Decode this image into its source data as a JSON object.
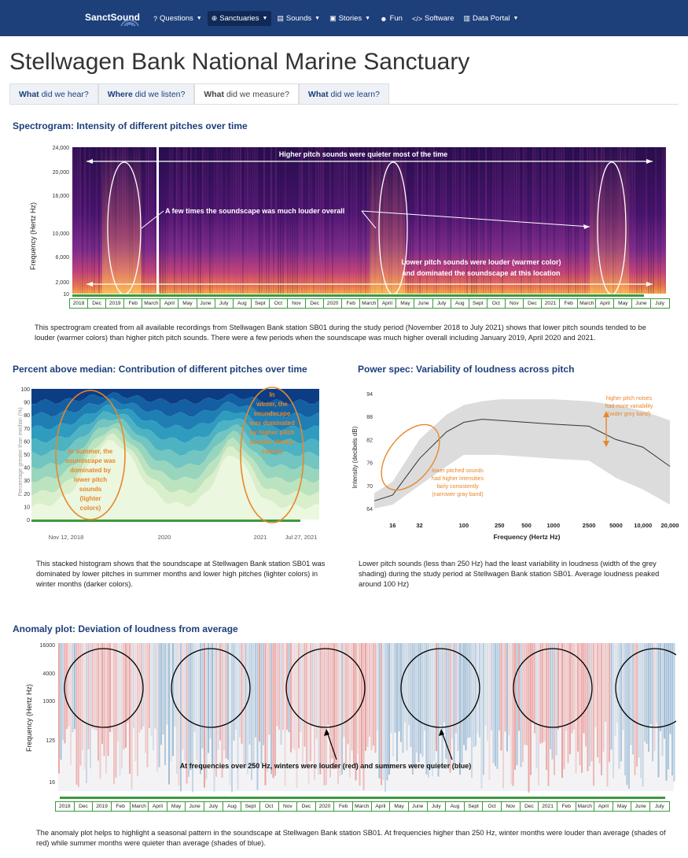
{
  "nav": {
    "brand": "SanctSound",
    "items": [
      {
        "label": "Questions",
        "icon": "question-icon",
        "glyph": "?",
        "caret": true
      },
      {
        "label": "Sanctuaries",
        "icon": "globe-icon",
        "glyph": "⊕",
        "caret": true,
        "active": true
      },
      {
        "label": "Sounds",
        "icon": "file-icon",
        "glyph": "▤",
        "caret": true
      },
      {
        "label": "Stories",
        "icon": "film-icon",
        "glyph": "▣",
        "caret": true
      },
      {
        "label": "Fun",
        "icon": "smile-icon",
        "glyph": "☻",
        "caret": false
      },
      {
        "label": "Software",
        "icon": "code-icon",
        "glyph": "</>",
        "caret": false
      },
      {
        "label": "Data Portal",
        "icon": "chart-icon",
        "glyph": "▥",
        "caret": true
      }
    ]
  },
  "page_title": "Stellwagen Bank National Marine Sanctuary",
  "tabs": [
    {
      "strong": "What",
      "rest": " did we hear?",
      "active": false
    },
    {
      "strong": "Where",
      "rest": " did we listen?",
      "active": false
    },
    {
      "strong": "What",
      "rest": " did we measure?",
      "active": true
    },
    {
      "strong": "What",
      "rest": " did we learn?",
      "active": false
    }
  ],
  "spectrogram": {
    "heading": "Spectrogram: Intensity of different pitches over time",
    "paragraph": "This spectrogram created from all available recordings from Stellwagen Bank station SB01 during the study period (November 2018 to July 2021) shows that lower pitch sounds tended to be louder (warmer colors) than higher pitch pitch sounds. There were a few periods when the soundscape was much higher overall including January 2019, April 2020 and 2021.",
    "annotations": {
      "top": "Higher pitch sounds were quieter most of the time",
      "middle": "A few times the soundscape was much louder overall",
      "bottom1": "Lower pitch sounds were louder (warmer color)",
      "bottom2": "and dominated the soundscape at this location"
    }
  },
  "percent_above_median": {
    "heading": "Percent above median: Contribution of different pitches over time",
    "paragraph": "This stacked histogram shows that the soundscape at Stellwagen Bank station SB01 was dominated by lower pitches in summer months and lower high pitches (lighter colors) in winter months (darker colors).",
    "annotations": {
      "summer": [
        "In summer, the",
        "soundscape was",
        "dominated by",
        "lower pitch",
        "sounds",
        "(lighter",
        "colors)"
      ],
      "winter": [
        "In",
        "winter, the",
        "soundscape",
        "was dominated",
        "by higher pitch",
        "sounds (darker",
        "colors)"
      ]
    }
  },
  "power_spec": {
    "heading": "Power spec: Variability of loudness across pitch",
    "paragraph": "Lower pitch sounds (less than 250 Hz) had the least variability in loudness (width of the grey shading) during the study period at Stellwagen Bank station SB01. Average loudness peaked around 100 Hz)",
    "annotations": {
      "right": [
        "higher pitch noises",
        "had more variability",
        "(wider grey band)"
      ],
      "left": [
        "lower pitched sounds",
        "had higher intensities",
        "fairly consistently",
        "(narrower gray band)"
      ]
    }
  },
  "anomaly": {
    "heading": "Anomaly plot:  Deviation of loudness from average",
    "paragraph": "The anomaly plot helps to highlight a seasonal pattern in the soundscape at Stellwagen Bank station SB01. At frequencies higher than 250 Hz, winter months were louder than average (shades of red) while summer months were  quieter than average (shades of blue).",
    "annotation": "At frequencies over 250 Hz, winters were louder (red) and summers were quieter (blue)"
  },
  "timeline_months": [
    "2018",
    "Dec",
    "2019",
    "Feb",
    "March",
    "April",
    "May",
    "June",
    "July",
    "Aug",
    "Sept",
    "Oct",
    "Nov",
    "Dec",
    "2020",
    "Feb",
    "March",
    "April",
    "May",
    "June",
    "July",
    "Aug",
    "Sept",
    "Oct",
    "Nov",
    "Dec",
    "2021",
    "Feb",
    "March",
    "April",
    "May",
    "June",
    "July"
  ],
  "chart_data": [
    {
      "type": "heatmap",
      "name_hint": "spectrogram",
      "ylabel": "Frequency (Hertz Hz)",
      "y_ticks": [
        "24,000",
        "20,000",
        "16,000",
        "10,000",
        "6,000",
        "2,000",
        "10"
      ],
      "x": "timeline_months"
    },
    {
      "type": "area",
      "name_hint": "percent_above_median",
      "ylabel": "Percentage greater than median (%)",
      "ylim": [
        0,
        100
      ],
      "y_ticks": [
        "100",
        "90",
        "80",
        "70",
        "60",
        "50",
        "40",
        "30",
        "20",
        "10",
        "0"
      ],
      "x_ticks": [
        "Nov 12, 2018",
        "2020",
        "2021",
        "Jul 27, 2021"
      ]
    },
    {
      "type": "line",
      "name_hint": "power_spec",
      "xlabel": "Frequency (Hertz Hz)",
      "ylabel": "Intensity (decibels dB)",
      "xscale": "log",
      "ylim": [
        64,
        94
      ],
      "y_ticks": [
        "94",
        "88",
        "82",
        "76",
        "70",
        "64"
      ],
      "x_ticks": [
        "16",
        "32",
        "100",
        "250",
        "500",
        "1000",
        "2500",
        "5000",
        "10,000",
        "20,000"
      ],
      "series": [
        {
          "x": [
            10,
            16,
            32,
            64,
            100,
            160,
            250,
            500,
            1000,
            2500,
            5000,
            10000,
            20000
          ],
          "mean": [
            66,
            67.5,
            77,
            84,
            86.5,
            87.3,
            87,
            86.5,
            86,
            85.5,
            82,
            80,
            75
          ],
          "lower": [
            64,
            65,
            70,
            75,
            78,
            78,
            78,
            77.5,
            77,
            76.5,
            72,
            69,
            65
          ],
          "upper": [
            68,
            71,
            82,
            88.5,
            91,
            92,
            92.5,
            92.5,
            92.5,
            92,
            91,
            89.5,
            87
          ]
        }
      ]
    },
    {
      "type": "heatmap",
      "name_hint": "anomaly",
      "ylabel": "Frequency (Hertz Hz)",
      "y_ticks": [
        "16000",
        "4000",
        "1000",
        "125",
        "16"
      ],
      "x": "timeline_months"
    }
  ],
  "colors": {
    "nav": "#1d3f7a",
    "heading": "#1d3f7a",
    "annotation_orange": "#e8872a",
    "timeline_green": "#3c9a3c"
  }
}
